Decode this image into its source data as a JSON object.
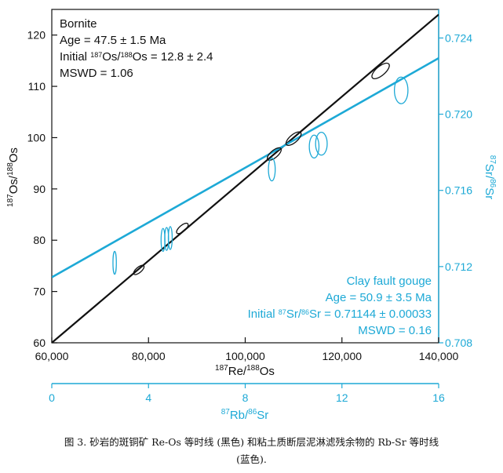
{
  "caption_line1": "图 3. 砂岩的斑铜矿 Re-Os 等时线 (黑色) 和粘土质断层泥淋滤残余物的 Rb-Sr 等时线",
  "caption_line2": "(蓝色).",
  "chart_data": {
    "type": "scatter",
    "axes": {
      "bottom": {
        "label_pre": "",
        "label_sup1": "187",
        "label_mid": "Re/",
        "label_sup2": "188",
        "label_post": "Os",
        "range": [
          60000,
          140000
        ],
        "ticks": [
          60000,
          80000,
          100000,
          120000,
          140000
        ],
        "tick_labels": [
          "60,000",
          "80,000",
          "100,000",
          "120,000",
          "140,000"
        ],
        "color": "#111111"
      },
      "top_secondary": {
        "label_sup1": "87",
        "label_mid": "Rb/",
        "label_sup2": "86",
        "label_post": "Sr",
        "range": [
          0,
          16
        ],
        "ticks": [
          0,
          4,
          8,
          12,
          16
        ],
        "tick_labels": [
          "0",
          "4",
          "8",
          "12",
          "16"
        ],
        "color": "#1da9d6"
      },
      "left": {
        "label_sup1": "187",
        "label_mid": "Os/",
        "label_sup2": "188",
        "label_post": "Os",
        "range": [
          60,
          125
        ],
        "ticks": [
          60,
          70,
          80,
          90,
          100,
          110,
          120
        ],
        "tick_labels": [
          "60",
          "70",
          "80",
          "90",
          "100",
          "110",
          "120"
        ],
        "color": "#111111"
      },
      "right": {
        "label_sup1": "87",
        "label_mid": "Sr/",
        "label_sup2": "86",
        "label_post": "Sr",
        "range": [
          0.708,
          0.7255
        ],
        "ticks": [
          0.708,
          0.712,
          0.716,
          0.72,
          0.724
        ],
        "tick_labels": [
          "0.708",
          "0.712",
          "0.716",
          "0.720",
          "0.724"
        ],
        "color": "#1da9d6"
      }
    },
    "series": [
      {
        "name": "Bornite",
        "color": "#111111",
        "annotation": {
          "line1": "Bornite",
          "line2": "Age = 47.5 ± 1.5 Ma",
          "line3_pre": "Initial ",
          "line3_sup1": "187",
          "line3_mid": "Os/",
          "line3_sup2": "188",
          "line3_post": "Os = 12.8 ± 2.4",
          "line4": "MSWD = 1.06"
        },
        "isochron": {
          "x": [
            60000,
            140000
          ],
          "y": [
            60.0,
            124.0
          ]
        },
        "points": [
          {
            "x": 78000,
            "y": 74.2,
            "sx": 900,
            "sy": 0.9
          },
          {
            "x": 87000,
            "y": 82.3,
            "sx": 1000,
            "sy": 1.0
          },
          {
            "x": 106000,
            "y": 96.8,
            "sx": 1100,
            "sy": 1.2
          },
          {
            "x": 110000,
            "y": 99.8,
            "sx": 1200,
            "sy": 1.3
          },
          {
            "x": 128000,
            "y": 113.0,
            "sx": 1500,
            "sy": 1.5
          }
        ]
      },
      {
        "name": "Clay fault gouge",
        "color": "#1da9d6",
        "annotation": {
          "line1": "Clay fault gouge",
          "line2": "Age = 50.9 ± 3.5 Ma",
          "line3_pre": "Initial ",
          "line3_sup1": "87",
          "line3_mid": "Sr/",
          "line3_sup2": "86",
          "line3_post": "Sr = 0.71144 ± 0.00033",
          "line4": "MSWD = 0.16"
        },
        "isochron": {
          "x": [
            0,
            16
          ],
          "y": [
            0.71144,
            0.72294
          ]
        },
        "points": [
          {
            "x": 2.6,
            "y": 0.7122,
            "sx": 0.07,
            "sy": 0.0006
          },
          {
            "x": 4.6,
            "y": 0.7134,
            "sx": 0.08,
            "sy": 0.0006
          },
          {
            "x": 4.75,
            "y": 0.71345,
            "sx": 0.08,
            "sy": 0.0006
          },
          {
            "x": 4.9,
            "y": 0.7135,
            "sx": 0.08,
            "sy": 0.0006
          },
          {
            "x": 9.1,
            "y": 0.7171,
            "sx": 0.14,
            "sy": 0.0006
          },
          {
            "x": 10.85,
            "y": 0.7183,
            "sx": 0.2,
            "sy": 0.0006
          },
          {
            "x": 11.15,
            "y": 0.71845,
            "sx": 0.24,
            "sy": 0.0006
          },
          {
            "x": 14.45,
            "y": 0.72125,
            "sx": 0.28,
            "sy": 0.0007
          }
        ]
      }
    ]
  }
}
